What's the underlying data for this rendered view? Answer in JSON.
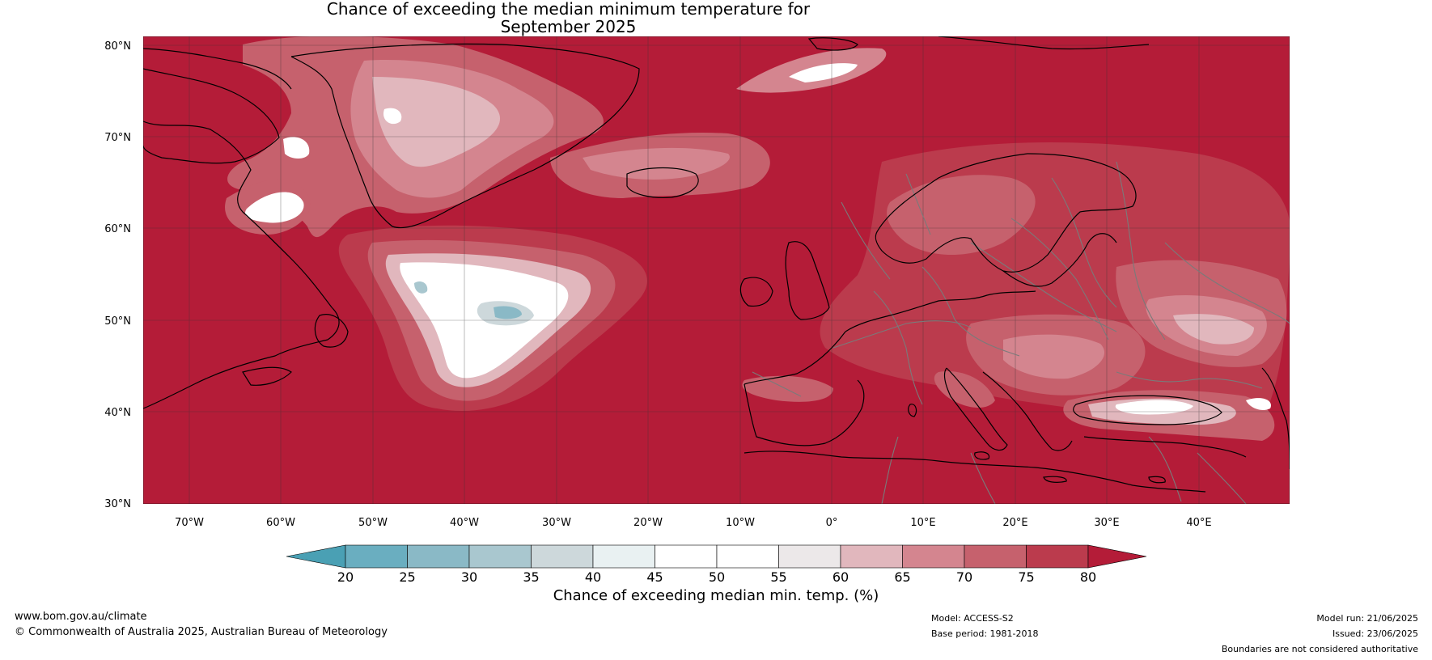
{
  "title": {
    "line1": "Chance of exceeding the median minimum temperature for",
    "line2": "September 2025"
  },
  "map": {
    "extent": {
      "lon": [
        -75,
        50
      ],
      "lat": [
        30,
        81
      ]
    },
    "lat_labels": [
      "80°N",
      "70°N",
      "60°N",
      "50°N",
      "40°N",
      "30°N"
    ],
    "lon_labels": [
      "70°W",
      "60°W",
      "50°W",
      "40°W",
      "30°W",
      "20°W",
      "10°W",
      "0°",
      "10°E",
      "20°E",
      "30°E",
      "40°E"
    ],
    "colors": {
      "background": "#b41c38",
      "coast": "#000000",
      "borders": "#7a7a7a",
      "grid": "#333333"
    }
  },
  "colorbar": {
    "ticks": [
      "20",
      "25",
      "30",
      "35",
      "40",
      "45",
      "50",
      "55",
      "60",
      "65",
      "70",
      "75",
      "80"
    ],
    "colors": [
      "#4aa0b4",
      "#6aaec0",
      "#8ab9c6",
      "#a9c7cf",
      "#cdd8db",
      "#e9f1f2",
      "#ffffff",
      "#ffffff",
      "#ece8e9",
      "#e1b7bd",
      "#d4858f",
      "#c6616d",
      "#bb3b4d",
      "#b41c38"
    ],
    "label": "Chance of exceeding median min. temp. (%)"
  },
  "footer": {
    "url": "www.bom.gov.au/climate",
    "copyright": "© Commonwealth of Australia 2025, Australian Bureau of Meteorology",
    "model": "Model: ACCESS-S2",
    "base_period": "Base period: 1981-2018",
    "model_run": "Model run: 21/06/2025",
    "issued": "Issued: 23/06/2025",
    "disclaimer": "Boundaries are not considered authoritative"
  }
}
